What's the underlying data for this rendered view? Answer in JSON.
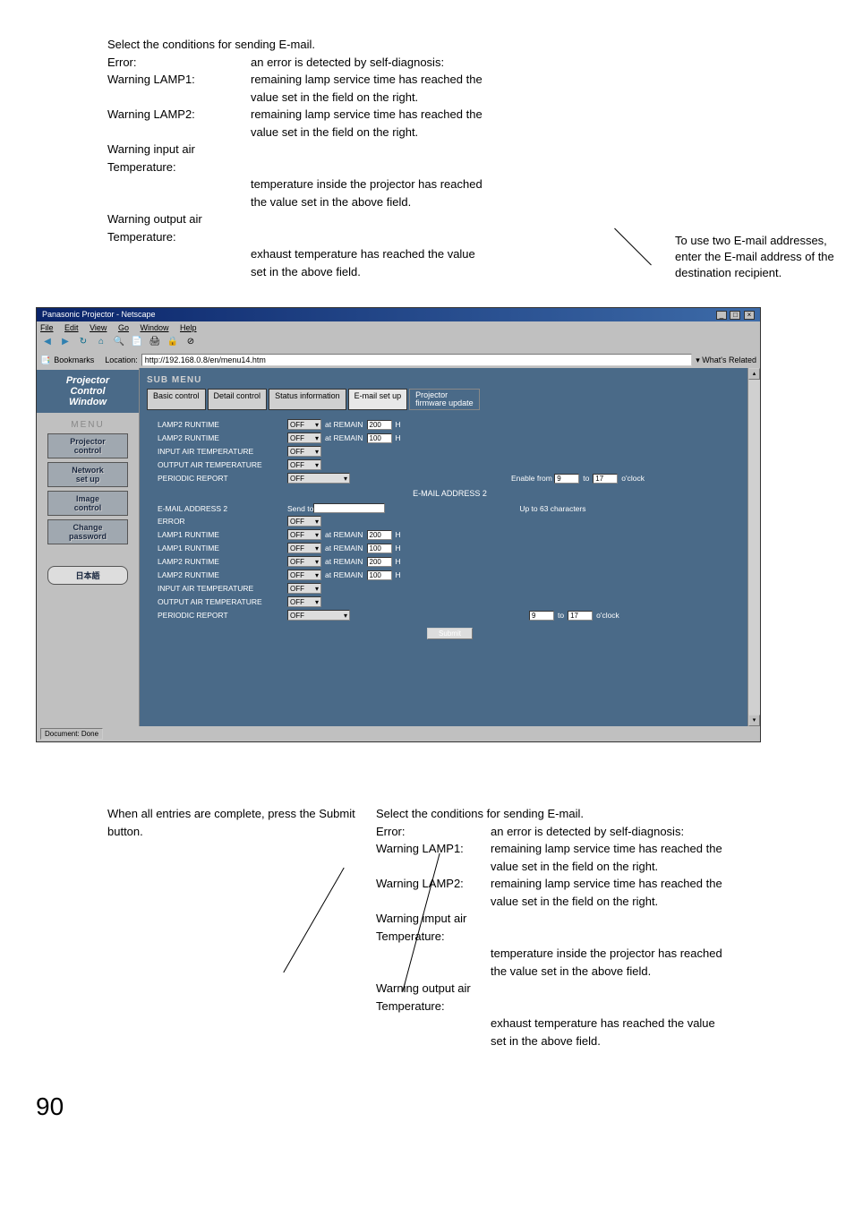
{
  "topAnnotation": {
    "lead": "Select the conditions for sending E-mail.",
    "rows": [
      {
        "label": "Error:",
        "desc": "an error is detected by self-diagnosis:"
      },
      {
        "label": "Warning LAMP1:",
        "desc": "remaining lamp service time has reached the"
      },
      {
        "label": "",
        "desc": "value set in the field on the right.",
        "indent": true
      },
      {
        "label": "Warning LAMP2:",
        "desc": "remaining lamp service time has reached the"
      },
      {
        "label": "",
        "desc": "value set in the field on the right.",
        "indent": true
      },
      {
        "label": "Warning input air Temperature:",
        "desc": ""
      },
      {
        "label": "",
        "desc": "temperature inside the projector has reached",
        "indent": true
      },
      {
        "label": "",
        "desc": "the value set in the above field.",
        "indent": true
      },
      {
        "label": "Warning output air Temperature:",
        "desc": ""
      },
      {
        "label": "",
        "desc": "exhaust temperature has reached the value",
        "indent": true
      },
      {
        "label": "",
        "desc": "set in the above field.",
        "indent": true
      }
    ]
  },
  "rightAnnotation": "To use two E-mail addresses, enter the E-mail address of the destination recipient.",
  "browser": {
    "title": "Panasonic Projector - Netscape",
    "menubar": [
      "File",
      "Edit",
      "View",
      "Go",
      "Window",
      "Help"
    ],
    "location": "http://192.168.0.8/en/menu14.htm",
    "bookmarks": "Bookmarks",
    "related": "What's Related",
    "status": "Document: Done"
  },
  "sidebar": {
    "pcw": "Projector Control Window",
    "menu": "MENU",
    "items": [
      "Projector control",
      "Network set up",
      "Image control",
      "Change password"
    ],
    "jp": "日本語"
  },
  "main": {
    "submenu": "SUB MENU",
    "tabs": [
      "Basic control",
      "Detail control",
      "Status information",
      "E-mail set up",
      "Projector firmware update"
    ],
    "rows1": [
      {
        "label": "LAMP2 RUNTIME",
        "sel": "OFF",
        "mid": "at REMAIN",
        "val": "200",
        "suffix": "H"
      },
      {
        "label": "LAMP2 RUNTIME",
        "sel": "OFF",
        "mid": "at REMAIN",
        "val": "100",
        "suffix": "H"
      },
      {
        "label": "INPUT AIR TEMPERATURE",
        "sel": "OFF"
      },
      {
        "label": "OUTPUT AIR TEMPERATURE",
        "sel": "OFF"
      },
      {
        "label": "PERIODIC REPORT",
        "selWide": "OFF",
        "enableRight": true,
        "enableLabel": "Enable from",
        "from": "9",
        "to": "17",
        "suffix": "o'clock"
      }
    ],
    "section2": "E-MAIL ADDRESS 2",
    "rows2": [
      {
        "label": "E-MAIL ADDRESS 2",
        "textLabel": "Send to",
        "wideInput": true,
        "note": "Up to 63 characters"
      },
      {
        "label": "ERROR",
        "sel": "OFF"
      },
      {
        "label": "LAMP1 RUNTIME",
        "sel": "OFF",
        "mid": "at REMAIN",
        "val": "200",
        "suffix": "H"
      },
      {
        "label": "LAMP1 RUNTIME",
        "sel": "OFF",
        "mid": "at REMAIN",
        "val": "100",
        "suffix": "H"
      },
      {
        "label": "LAMP2 RUNTIME",
        "sel": "OFF",
        "mid": "at REMAIN",
        "val": "200",
        "suffix": "H"
      },
      {
        "label": "LAMP2 RUNTIME",
        "sel": "OFF",
        "mid": "at REMAIN",
        "val": "100",
        "suffix": "H"
      },
      {
        "label": "INPUT AIR TEMPERATURE",
        "sel": "OFF"
      },
      {
        "label": "OUTPUT AIR TEMPERATURE",
        "sel": "OFF"
      },
      {
        "label": "PERIODIC REPORT",
        "selWide": "OFF",
        "from": "9",
        "to": "17",
        "suffix": "o'clock"
      }
    ],
    "submit": "Submit"
  },
  "bottomLeft": "When all entries are complete, press the Submit button.",
  "bottomRight": {
    "lead": "Select the conditions for sending E-mail.",
    "rows": [
      {
        "label": "Error:",
        "desc": "an error is detected by self-diagnosis:"
      },
      {
        "label": "Warning LAMP1:",
        "desc": "remaining lamp service time has reached the"
      },
      {
        "label": "",
        "desc": "value set in the field on the right.",
        "indent": true
      },
      {
        "label": "Warning LAMP2:",
        "desc": "remaining lamp service time has reached the"
      },
      {
        "label": "",
        "desc": "value set in the field on the right.",
        "indent": true
      },
      {
        "label": "Warning imput air Temperature:",
        "desc": ""
      },
      {
        "label": "",
        "desc": "temperature inside the projector has reached",
        "indent": true
      },
      {
        "label": "",
        "desc": "the value set in the above field.",
        "indent": true
      },
      {
        "label": "Warning output air Temperature:",
        "desc": ""
      },
      {
        "label": "",
        "desc": "exhaust temperature has reached the value",
        "indent": true
      },
      {
        "label": "",
        "desc": "set in the above field.",
        "indent": true
      }
    ]
  },
  "pageNum": "90",
  "colors": {
    "headerBlue": "#4a6a88",
    "sidebarBg": "#c0c0c0"
  }
}
